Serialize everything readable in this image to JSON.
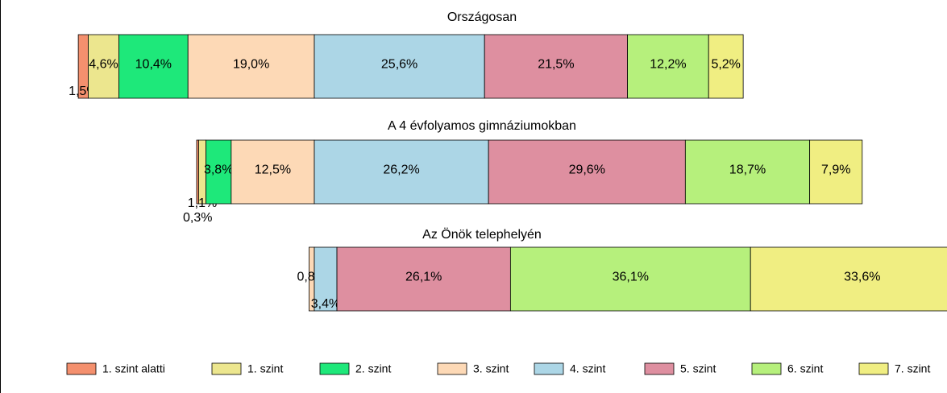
{
  "chart_data": {
    "type": "stacked-bar-horizontal",
    "categories": [
      "Országosan",
      "A 4 évfolyamos gimnáziumokban",
      "Az Önök telephelyén"
    ],
    "series": [
      {
        "name": "1. szint alatti",
        "color": "#f4906e",
        "values": [
          1.5,
          0.3,
          null
        ],
        "value_labels": [
          "1,5%",
          "0,3%",
          null
        ]
      },
      {
        "name": "1. szint",
        "color": "#ece68e",
        "values": [
          4.6,
          1.1,
          null
        ],
        "value_labels": [
          "4,6%",
          "1,1%",
          null
        ]
      },
      {
        "name": "2. szint",
        "color": "#1ee87a",
        "values": [
          10.4,
          3.8,
          null
        ],
        "value_labels": [
          "10,4%",
          "3,8%",
          null
        ]
      },
      {
        "name": "3. szint",
        "color": "#fdd9b6",
        "values": [
          19.0,
          12.5,
          0.8
        ],
        "value_labels": [
          "19,0%",
          "12,5%",
          "0,8%"
        ]
      },
      {
        "name": "4. szint",
        "color": "#acd6e6",
        "values": [
          25.6,
          26.2,
          3.4
        ],
        "value_labels": [
          "25,6%",
          "26,2%",
          "3,4%"
        ]
      },
      {
        "name": "5. szint",
        "color": "#de8fa0",
        "values": [
          21.5,
          29.6,
          26.1
        ],
        "value_labels": [
          "21,5%",
          "29,6%",
          "26,1%"
        ]
      },
      {
        "name": "6. szint",
        "color": "#b6f07c",
        "values": [
          12.2,
          18.7,
          36.1
        ],
        "value_labels": [
          "12,2%",
          "18,7%",
          "36,1%"
        ]
      },
      {
        "name": "7. szint",
        "color": "#f0ee82",
        "values": [
          5.2,
          7.9,
          33.6
        ],
        "value_labels": [
          "5,2%",
          "7,9%",
          "33,6%"
        ]
      }
    ]
  }
}
